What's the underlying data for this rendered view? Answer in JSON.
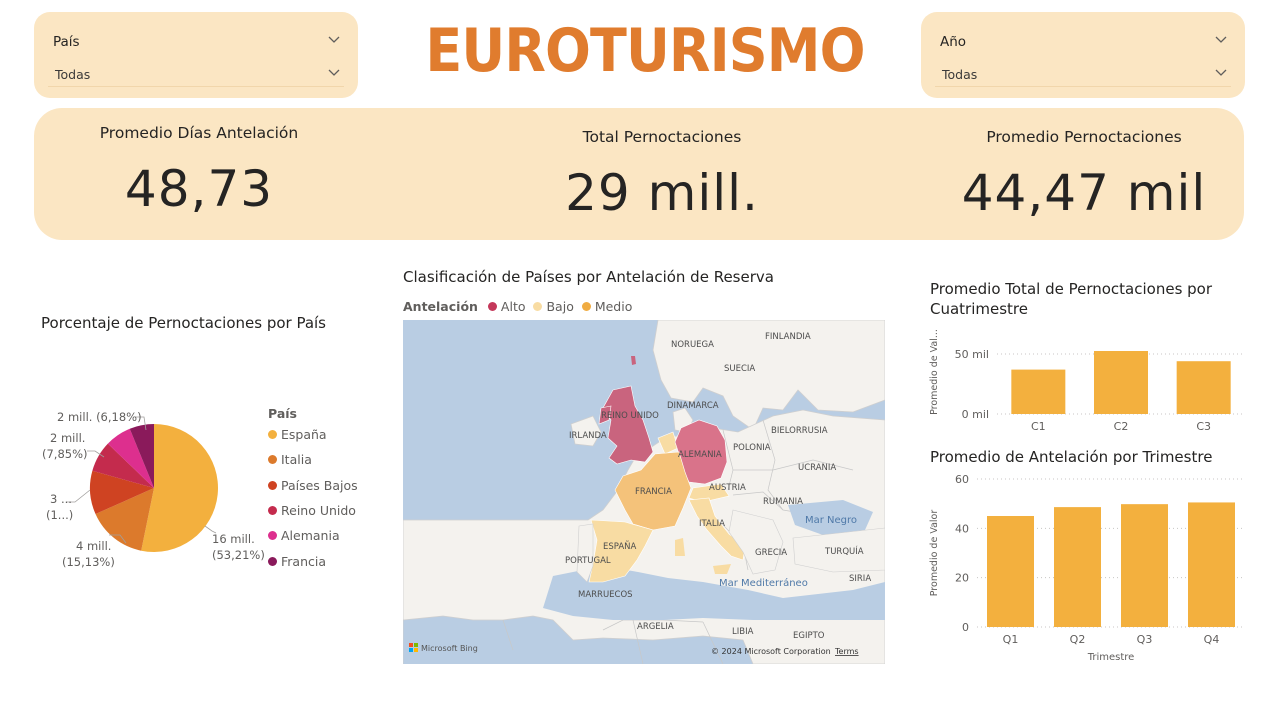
{
  "header": {
    "title": "EUROTURISMO",
    "country_slicer": {
      "label": "País",
      "value": "Todas"
    },
    "year_slicer": {
      "label": "Año",
      "value": "Todas"
    }
  },
  "kpis": [
    {
      "label": "Promedio Días Antelación",
      "value": "48,73"
    },
    {
      "label": "Total Pernoctaciones",
      "value": "29 mill."
    },
    {
      "label": "Promedio Pernoctaciones",
      "value": "44,47 mil"
    }
  ],
  "pie_chart": {
    "title": "Porcentaje de Pernoctaciones por País",
    "legend_title": "País",
    "labels": [
      {
        "line1": "16 mill.",
        "line2": "(53,21%)"
      },
      {
        "line1": "4 mill.",
        "line2": "(15,13%)"
      },
      {
        "line1": "3 ...",
        "line2": "(1...)"
      },
      {
        "line1": "2 mill.",
        "line2": "(7,85%)"
      },
      {
        "line1": "2 mill. (6,18%)",
        "line2": ""
      }
    ]
  },
  "map": {
    "title": "Clasificación de Países por Antelación de Reserva",
    "legend_title": "Antelación",
    "legend": [
      {
        "label": "Alto",
        "color": "#c4385a"
      },
      {
        "label": "Bajo",
        "color": "#f8dca3"
      },
      {
        "label": "Medio",
        "color": "#f0ac42"
      }
    ],
    "labels": {
      "noruega": "NORUEGA",
      "finlandia": "FINLANDIA",
      "suecia": "SUECIA",
      "dinamarca": "DINAMARCA",
      "reino_unido": "REINO UNIDO",
      "irlanda": "IRLANDA",
      "alemania": "ALEMANIA",
      "polonia": "POLONIA",
      "bielorrusia": "BIELORRUSIA",
      "ucrania": "UCRANIA",
      "francia": "FRANCIA",
      "austria": "AUSTRIA",
      "rumania": "RUMANIA",
      "italia": "ITALIA",
      "espana": "ESPAÑA",
      "portugal": "PORTUGAL",
      "grecia": "GRECIA",
      "turquia": "TURQUÍA",
      "siria": "SIRIA",
      "marruecos": "MARRUECOS",
      "argelia": "ARGELIA",
      "libia": "LIBIA",
      "egipto": "EGIPTO",
      "mar_negro": "Mar Negro",
      "mar_mediterraneo": "Mar Mediterráneo"
    },
    "attribution": "Microsoft Bing",
    "copyright": "© 2024 Microsoft Corporation",
    "terms": "Terms"
  },
  "chart_data": [
    {
      "type": "pie",
      "title": "Porcentaje de Pernoctaciones por País",
      "categories": [
        "España",
        "Italia",
        "Países Bajos",
        "Reino Unido",
        "Alemania",
        "Francia"
      ],
      "values": [
        53.21,
        15.13,
        11.0,
        7.85,
        6.63,
        6.18
      ],
      "colors": [
        "#f3b03e",
        "#dc7a2c",
        "#cf4322",
        "#c42b4d",
        "#dd2f8e",
        "#8a1a5b"
      ],
      "legend": "right"
    },
    {
      "type": "bar",
      "title": "Promedio Total de Pernoctaciones por Cuatrimestre",
      "ylabel": "Promedio de Val...",
      "categories": [
        "C1",
        "C2",
        "C3"
      ],
      "values": [
        37000,
        52500,
        44000
      ],
      "yticks": [
        "0 mil",
        "50 mil"
      ],
      "ylim": [
        0,
        70000
      ],
      "color": "#f3b03e"
    },
    {
      "type": "bar",
      "title": "Promedio de Antelación por Trimestre",
      "xlabel": "Trimestre",
      "ylabel": "Promedio de Valor",
      "categories": [
        "Q1",
        "Q2",
        "Q3",
        "Q4"
      ],
      "values": [
        45,
        48.6,
        49.8,
        50.5
      ],
      "yticks": [
        "0",
        "20",
        "40",
        "60"
      ],
      "ylim": [
        0,
        60
      ],
      "color": "#f3b03e"
    }
  ]
}
